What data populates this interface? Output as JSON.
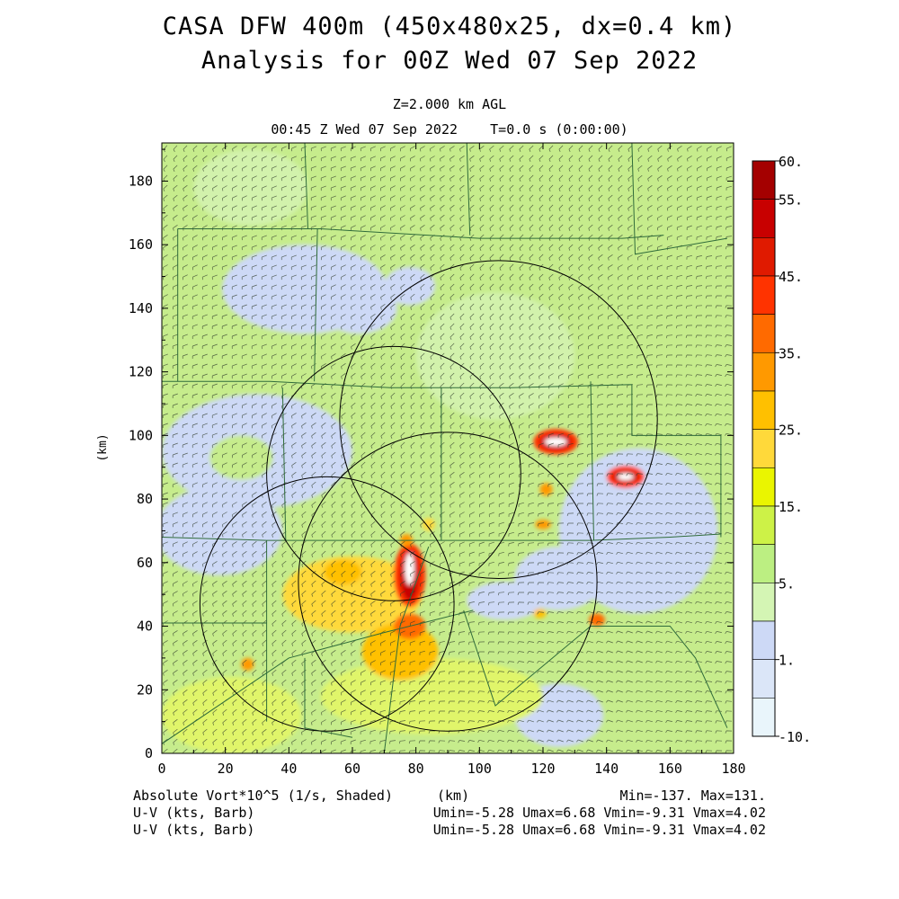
{
  "header": {
    "title_line1": "CASA DFW 400m (450x480x25, dx=0.4 km)",
    "title_line2": "Analysis for 00Z Wed 07 Sep 2022",
    "level": "Z=2.000 km AGL",
    "time": "00:45 Z Wed 07 Sep 2022    T=0.0 s (0:00:00)"
  },
  "footer": {
    "field_label": "Absolute Vort*10^5 (1/s, Shaded)",
    "xunit": "(km)",
    "minmax": "Min=-137. Max=131.",
    "wind1_label": "U-V (kts, Barb)",
    "wind1_stats": "Umin=-5.28 Umax=6.68 Vmin=-9.31 Vmax=4.02",
    "wind2_label": "U-V (kts, Barb)",
    "wind2_stats": "Umin=-5.28 Umax=6.68 Vmin=-9.31 Vmax=4.02"
  },
  "chart_data": {
    "type": "heatmap",
    "title": "CASA DFW 400m (450x480x25, dx=0.4 km)",
    "xlabel": "",
    "ylabel": "(km)",
    "xlim": [
      0,
      180
    ],
    "ylim": [
      0,
      192
    ],
    "x_ticks": [
      "0",
      "20",
      "40",
      "60",
      "80",
      "100",
      "120",
      "140",
      "160",
      "180"
    ],
    "y_ticks": [
      "0",
      "20",
      "40",
      "60",
      "80",
      "100",
      "120",
      "140",
      "160",
      "180"
    ],
    "colorbar": {
      "labels": [
        "60.",
        "55.",
        "45.",
        "35.",
        "25.",
        "15.",
        "5.",
        "1.",
        "-10."
      ],
      "colors": [
        "#a40000",
        "#c80000",
        "#e01a00",
        "#ff3300",
        "#ff6a00",
        "#ff9900",
        "#ffc000",
        "#ffd93a",
        "#eaf500",
        "#cdf247",
        "#bcef82",
        "#d4f5b4",
        "#cdd9f6",
        "#dbe6f8",
        "#e9f5fb"
      ]
    },
    "background_value_color": "#c6ec8c",
    "regions": [
      {
        "kind": "ellipse",
        "cx": 28,
        "cy": 178,
        "rx": 18,
        "ry": 12,
        "color": "#d2f2ac"
      },
      {
        "kind": "ellipse",
        "cx": 45,
        "cy": 146,
        "rx": 26,
        "ry": 14,
        "color": "#cdd9f6"
      },
      {
        "kind": "ellipse",
        "cx": 62,
        "cy": 140,
        "rx": 12,
        "ry": 8,
        "color": "#cdd9f6"
      },
      {
        "kind": "ellipse",
        "cx": 78,
        "cy": 147,
        "rx": 8,
        "ry": 6,
        "color": "#cdd9f6"
      },
      {
        "kind": "ellipse",
        "cx": 30,
        "cy": 95,
        "rx": 30,
        "ry": 18,
        "color": "#cdd9f6"
      },
      {
        "kind": "ellipse",
        "cx": 18,
        "cy": 70,
        "rx": 20,
        "ry": 14,
        "color": "#cdd9f6"
      },
      {
        "kind": "ellipse",
        "cx": 25,
        "cy": 93,
        "rx": 10,
        "ry": 7,
        "color": "#c6ec8c"
      },
      {
        "kind": "ellipse",
        "cx": 150,
        "cy": 70,
        "rx": 25,
        "ry": 26,
        "color": "#cdd9f6"
      },
      {
        "kind": "ellipse",
        "cx": 125,
        "cy": 55,
        "rx": 14,
        "ry": 10,
        "color": "#cdd9f6"
      },
      {
        "kind": "ellipse",
        "cx": 108,
        "cy": 48,
        "rx": 12,
        "ry": 6,
        "color": "#cdd9f6"
      },
      {
        "kind": "ellipse",
        "cx": 125,
        "cy": 12,
        "rx": 14,
        "ry": 10,
        "color": "#cdd9f6"
      },
      {
        "kind": "ellipse",
        "cx": 105,
        "cy": 125,
        "rx": 25,
        "ry": 20,
        "color": "#d2f2ac"
      },
      {
        "kind": "ellipse",
        "cx": 22,
        "cy": 12,
        "rx": 22,
        "ry": 12,
        "color": "#e0f56a"
      },
      {
        "kind": "ellipse",
        "cx": 85,
        "cy": 18,
        "rx": 35,
        "ry": 12,
        "color": "#e0f56a"
      },
      {
        "kind": "ellipse",
        "cx": 60,
        "cy": 50,
        "rx": 22,
        "ry": 12,
        "color": "#ffd93a"
      },
      {
        "kind": "ellipse",
        "cx": 75,
        "cy": 32,
        "rx": 12,
        "ry": 9,
        "color": "#ffc000"
      },
      {
        "kind": "ellipse",
        "cx": 78,
        "cy": 40,
        "rx": 5,
        "ry": 4,
        "color": "#ff6a00"
      },
      {
        "kind": "ellipse",
        "cx": 57,
        "cy": 57,
        "rx": 6,
        "ry": 4,
        "color": "#ffc000"
      },
      {
        "kind": "ellipse",
        "cx": 78,
        "cy": 56,
        "rx": 5,
        "ry": 10,
        "color": "#ff3300"
      },
      {
        "kind": "ellipse",
        "cx": 78,
        "cy": 56,
        "rx": 3,
        "ry": 8,
        "color": "#c80000"
      },
      {
        "kind": "ellipse",
        "cx": 78,
        "cy": 58,
        "rx": 1.5,
        "ry": 5,
        "color": "#ffffff"
      },
      {
        "kind": "ellipse",
        "cx": 124,
        "cy": 98,
        "rx": 7,
        "ry": 4,
        "color": "#ff3300"
      },
      {
        "kind": "ellipse",
        "cx": 124,
        "cy": 98,
        "rx": 5,
        "ry": 2.5,
        "color": "#c80000"
      },
      {
        "kind": "ellipse",
        "cx": 124,
        "cy": 98,
        "rx": 3.5,
        "ry": 1.3,
        "color": "#ffffff"
      },
      {
        "kind": "ellipse",
        "cx": 146,
        "cy": 87,
        "rx": 6,
        "ry": 3.5,
        "color": "#ff3300"
      },
      {
        "kind": "ellipse",
        "cx": 146,
        "cy": 87,
        "rx": 4,
        "ry": 2,
        "color": "#c80000"
      },
      {
        "kind": "ellipse",
        "cx": 146,
        "cy": 87,
        "rx": 2.5,
        "ry": 1.1,
        "color": "#ffffff"
      },
      {
        "kind": "ellipse",
        "cx": 121,
        "cy": 83,
        "rx": 2,
        "ry": 2,
        "color": "#ff9900"
      },
      {
        "kind": "ellipse",
        "cx": 120,
        "cy": 72,
        "rx": 2.5,
        "ry": 1.5,
        "color": "#ff9900"
      },
      {
        "kind": "ellipse",
        "cx": 137,
        "cy": 42,
        "rx": 2.5,
        "ry": 2,
        "color": "#ff6a00"
      },
      {
        "kind": "ellipse",
        "cx": 119,
        "cy": 44,
        "rx": 2,
        "ry": 1.5,
        "color": "#ffc000"
      },
      {
        "kind": "ellipse",
        "cx": 27,
        "cy": 28,
        "rx": 2,
        "ry": 2,
        "color": "#ff9900"
      },
      {
        "kind": "ellipse",
        "cx": 84,
        "cy": 72,
        "rx": 2,
        "ry": 2,
        "color": "#ffd93a"
      },
      {
        "kind": "ellipse",
        "cx": 77,
        "cy": 67,
        "rx": 2,
        "ry": 2,
        "color": "#ff9900"
      }
    ],
    "radar_circles": [
      {
        "cx": 106,
        "cy": 105,
        "r": 50
      },
      {
        "cx": 73,
        "cy": 88,
        "r": 40
      },
      {
        "cx": 90,
        "cy": 54,
        "r": 47
      },
      {
        "cx": 52,
        "cy": 47,
        "r": 40
      }
    ],
    "county_lines": [
      [
        [
          0,
          117
        ],
        [
          34,
          117
        ],
        [
          72,
          115
        ],
        [
          110,
          115
        ],
        [
          148,
          116
        ]
      ],
      [
        [
          0,
          68
        ],
        [
          33,
          67
        ],
        [
          80,
          67
        ],
        [
          115,
          67
        ],
        [
          135,
          67
        ],
        [
          160,
          68
        ],
        [
          176,
          69
        ]
      ],
      [
        [
          0,
          41
        ],
        [
          33,
          41
        ]
      ],
      [
        [
          5,
          165
        ],
        [
          50,
          165
        ],
        [
          100,
          162
        ],
        [
          145,
          162
        ],
        [
          158,
          163
        ]
      ],
      [
        [
          5,
          165
        ],
        [
          5,
          117
        ]
      ],
      [
        [
          49,
          165
        ],
        [
          48,
          117
        ]
      ],
      [
        [
          38,
          115
        ],
        [
          39,
          67
        ]
      ],
      [
        [
          33,
          67
        ],
        [
          33,
          41
        ],
        [
          33,
          10
        ]
      ],
      [
        [
          88,
          115
        ],
        [
          88,
          67
        ]
      ],
      [
        [
          135,
          117
        ],
        [
          136,
          67
        ]
      ],
      [
        [
          45,
          192
        ],
        [
          46,
          165
        ]
      ],
      [
        [
          96,
          192
        ],
        [
          97,
          163
        ]
      ],
      [
        [
          148,
          192
        ],
        [
          149,
          157
        ],
        [
          178,
          162
        ]
      ],
      [
        [
          148,
          116
        ],
        [
          148,
          100
        ],
        [
          176,
          100
        ],
        [
          176,
          68
        ]
      ],
      [
        [
          0,
          3
        ],
        [
          40,
          30
        ],
        [
          70,
          38
        ],
        [
          98,
          45
        ]
      ],
      [
        [
          70,
          0
        ],
        [
          75,
          40
        ],
        [
          84,
          65
        ]
      ],
      [
        [
          95,
          45
        ],
        [
          105,
          15
        ],
        [
          135,
          40
        ],
        [
          160,
          40
        ],
        [
          168,
          30
        ],
        [
          178,
          8
        ]
      ],
      [
        [
          45,
          30
        ],
        [
          45,
          8
        ],
        [
          60,
          5
        ]
      ]
    ]
  }
}
